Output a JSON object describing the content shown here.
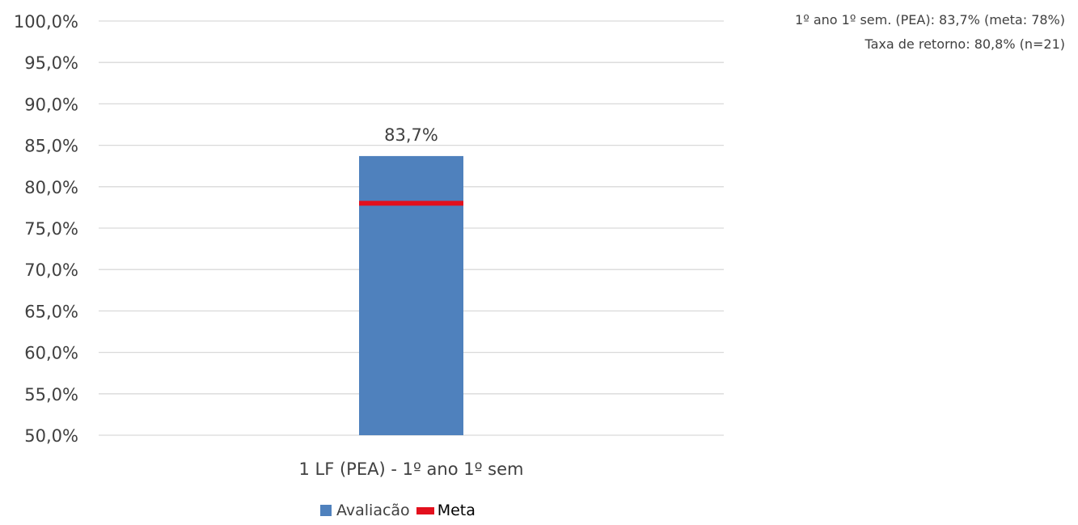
{
  "annotations": {
    "line1": "1º ano 1º sem. (PEA): 83,7% (meta: 78%)",
    "line2": "Taxa de retorno: 80,8% (n=21)"
  },
  "legend": {
    "avaliacao": "Avaliacão",
    "meta": "Meta"
  },
  "colors": {
    "bar": "#4f81bd",
    "meta": "#e3101d",
    "grid": "#d9d9d9",
    "text": "#404040"
  },
  "chart_data": {
    "type": "bar",
    "categories": [
      "1 LF (PEA) - 1º ano 1º sem"
    ],
    "series": [
      {
        "name": "Avaliacão",
        "values": [
          83.7
        ]
      }
    ],
    "meta": {
      "name": "Meta",
      "values": [
        78
      ]
    },
    "data_labels": [
      "83,7%"
    ],
    "ylim": [
      50,
      100
    ],
    "yticks": [
      50,
      55,
      60,
      65,
      70,
      75,
      80,
      85,
      90,
      95,
      100
    ],
    "ytick_labels": [
      "50,0%",
      "55,0%",
      "60,0%",
      "65,0%",
      "70,0%",
      "75,0%",
      "80,0%",
      "85,0%",
      "90,0%",
      "95,0%",
      "100,0%"
    ],
    "grid": true,
    "legend_position": "bottom"
  }
}
